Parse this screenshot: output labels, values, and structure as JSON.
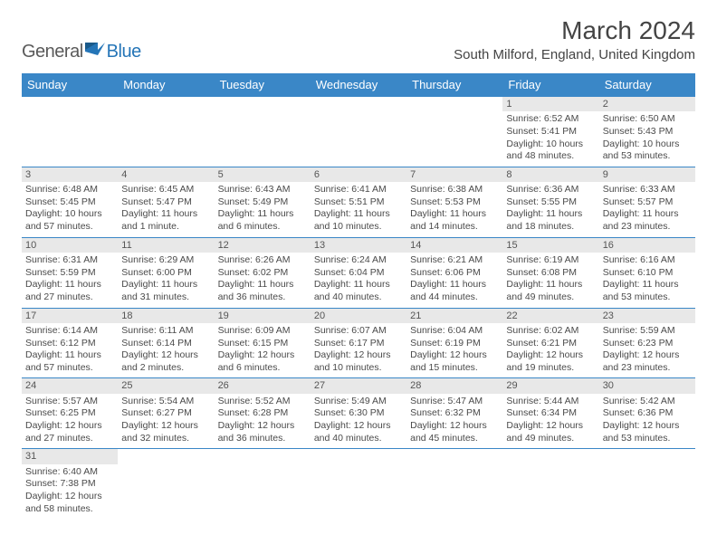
{
  "logo": {
    "part1": "General",
    "part2": "Blue"
  },
  "title": "March 2024",
  "location": "South Milford, England, United Kingdom",
  "colors": {
    "header_bg": "#3a87c7",
    "header_text": "#ffffff",
    "daynum_bg": "#e8e8e8",
    "row_border": "#3a87c7",
    "logo_gray": "#5a5a5a",
    "logo_blue": "#2575b7",
    "body_text": "#4a4a4a"
  },
  "weekdays": [
    "Sunday",
    "Monday",
    "Tuesday",
    "Wednesday",
    "Thursday",
    "Friday",
    "Saturday"
  ],
  "weeks": [
    [
      null,
      null,
      null,
      null,
      null,
      {
        "n": "1",
        "sr": "Sunrise: 6:52 AM",
        "ss": "Sunset: 5:41 PM",
        "dl": "Daylight: 10 hours and 48 minutes."
      },
      {
        "n": "2",
        "sr": "Sunrise: 6:50 AM",
        "ss": "Sunset: 5:43 PM",
        "dl": "Daylight: 10 hours and 53 minutes."
      }
    ],
    [
      {
        "n": "3",
        "sr": "Sunrise: 6:48 AM",
        "ss": "Sunset: 5:45 PM",
        "dl": "Daylight: 10 hours and 57 minutes."
      },
      {
        "n": "4",
        "sr": "Sunrise: 6:45 AM",
        "ss": "Sunset: 5:47 PM",
        "dl": "Daylight: 11 hours and 1 minute."
      },
      {
        "n": "5",
        "sr": "Sunrise: 6:43 AM",
        "ss": "Sunset: 5:49 PM",
        "dl": "Daylight: 11 hours and 6 minutes."
      },
      {
        "n": "6",
        "sr": "Sunrise: 6:41 AM",
        "ss": "Sunset: 5:51 PM",
        "dl": "Daylight: 11 hours and 10 minutes."
      },
      {
        "n": "7",
        "sr": "Sunrise: 6:38 AM",
        "ss": "Sunset: 5:53 PM",
        "dl": "Daylight: 11 hours and 14 minutes."
      },
      {
        "n": "8",
        "sr": "Sunrise: 6:36 AM",
        "ss": "Sunset: 5:55 PM",
        "dl": "Daylight: 11 hours and 18 minutes."
      },
      {
        "n": "9",
        "sr": "Sunrise: 6:33 AM",
        "ss": "Sunset: 5:57 PM",
        "dl": "Daylight: 11 hours and 23 minutes."
      }
    ],
    [
      {
        "n": "10",
        "sr": "Sunrise: 6:31 AM",
        "ss": "Sunset: 5:59 PM",
        "dl": "Daylight: 11 hours and 27 minutes."
      },
      {
        "n": "11",
        "sr": "Sunrise: 6:29 AM",
        "ss": "Sunset: 6:00 PM",
        "dl": "Daylight: 11 hours and 31 minutes."
      },
      {
        "n": "12",
        "sr": "Sunrise: 6:26 AM",
        "ss": "Sunset: 6:02 PM",
        "dl": "Daylight: 11 hours and 36 minutes."
      },
      {
        "n": "13",
        "sr": "Sunrise: 6:24 AM",
        "ss": "Sunset: 6:04 PM",
        "dl": "Daylight: 11 hours and 40 minutes."
      },
      {
        "n": "14",
        "sr": "Sunrise: 6:21 AM",
        "ss": "Sunset: 6:06 PM",
        "dl": "Daylight: 11 hours and 44 minutes."
      },
      {
        "n": "15",
        "sr": "Sunrise: 6:19 AM",
        "ss": "Sunset: 6:08 PM",
        "dl": "Daylight: 11 hours and 49 minutes."
      },
      {
        "n": "16",
        "sr": "Sunrise: 6:16 AM",
        "ss": "Sunset: 6:10 PM",
        "dl": "Daylight: 11 hours and 53 minutes."
      }
    ],
    [
      {
        "n": "17",
        "sr": "Sunrise: 6:14 AM",
        "ss": "Sunset: 6:12 PM",
        "dl": "Daylight: 11 hours and 57 minutes."
      },
      {
        "n": "18",
        "sr": "Sunrise: 6:11 AM",
        "ss": "Sunset: 6:14 PM",
        "dl": "Daylight: 12 hours and 2 minutes."
      },
      {
        "n": "19",
        "sr": "Sunrise: 6:09 AM",
        "ss": "Sunset: 6:15 PM",
        "dl": "Daylight: 12 hours and 6 minutes."
      },
      {
        "n": "20",
        "sr": "Sunrise: 6:07 AM",
        "ss": "Sunset: 6:17 PM",
        "dl": "Daylight: 12 hours and 10 minutes."
      },
      {
        "n": "21",
        "sr": "Sunrise: 6:04 AM",
        "ss": "Sunset: 6:19 PM",
        "dl": "Daylight: 12 hours and 15 minutes."
      },
      {
        "n": "22",
        "sr": "Sunrise: 6:02 AM",
        "ss": "Sunset: 6:21 PM",
        "dl": "Daylight: 12 hours and 19 minutes."
      },
      {
        "n": "23",
        "sr": "Sunrise: 5:59 AM",
        "ss": "Sunset: 6:23 PM",
        "dl": "Daylight: 12 hours and 23 minutes."
      }
    ],
    [
      {
        "n": "24",
        "sr": "Sunrise: 5:57 AM",
        "ss": "Sunset: 6:25 PM",
        "dl": "Daylight: 12 hours and 27 minutes."
      },
      {
        "n": "25",
        "sr": "Sunrise: 5:54 AM",
        "ss": "Sunset: 6:27 PM",
        "dl": "Daylight: 12 hours and 32 minutes."
      },
      {
        "n": "26",
        "sr": "Sunrise: 5:52 AM",
        "ss": "Sunset: 6:28 PM",
        "dl": "Daylight: 12 hours and 36 minutes."
      },
      {
        "n": "27",
        "sr": "Sunrise: 5:49 AM",
        "ss": "Sunset: 6:30 PM",
        "dl": "Daylight: 12 hours and 40 minutes."
      },
      {
        "n": "28",
        "sr": "Sunrise: 5:47 AM",
        "ss": "Sunset: 6:32 PM",
        "dl": "Daylight: 12 hours and 45 minutes."
      },
      {
        "n": "29",
        "sr": "Sunrise: 5:44 AM",
        "ss": "Sunset: 6:34 PM",
        "dl": "Daylight: 12 hours and 49 minutes."
      },
      {
        "n": "30",
        "sr": "Sunrise: 5:42 AM",
        "ss": "Sunset: 6:36 PM",
        "dl": "Daylight: 12 hours and 53 minutes."
      }
    ],
    [
      {
        "n": "31",
        "sr": "Sunrise: 6:40 AM",
        "ss": "Sunset: 7:38 PM",
        "dl": "Daylight: 12 hours and 58 minutes."
      },
      null,
      null,
      null,
      null,
      null,
      null
    ]
  ]
}
